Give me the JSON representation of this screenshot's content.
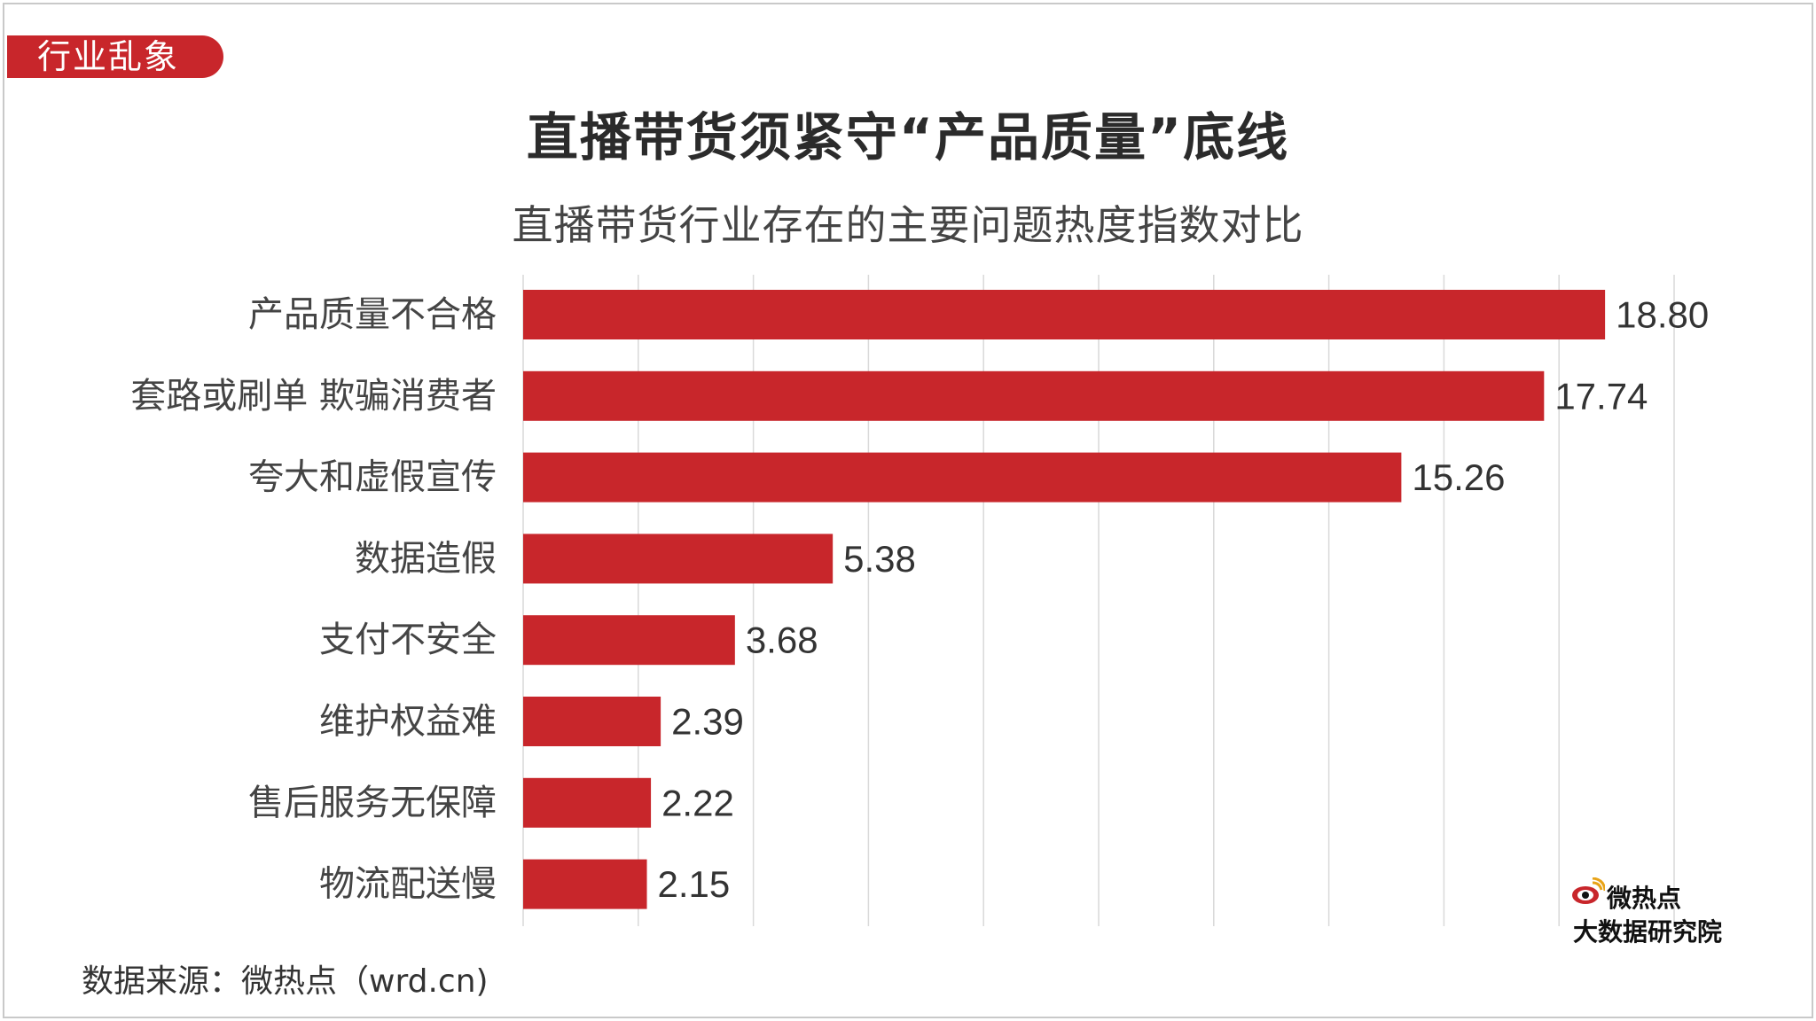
{
  "tag": "行业乱象",
  "title": "直播带货须紧守“产品质量”底线",
  "subtitle": "直播带货行业存在的主要问题热度指数对比",
  "source": "数据来源：微热点（wrd.cn)",
  "logo": {
    "line1": "微热点",
    "line2": "大数据研究院"
  },
  "colors": {
    "bar": "#c8262b",
    "tag": "#c8262b",
    "grid": "#d9d9d9"
  },
  "chart_data": {
    "type": "bar",
    "orientation": "horizontal",
    "categories": [
      "产品质量不合格",
      "套路或刷单 欺骗消费者",
      "夸大和虚假宣传",
      "数据造假",
      "支付不安全",
      "维护权益难",
      "售后服务无保障",
      "物流配送慢"
    ],
    "values": [
      18.8,
      17.74,
      15.26,
      5.38,
      3.68,
      2.39,
      2.22,
      2.15
    ],
    "value_labels": [
      "18.80",
      "17.74",
      "15.26",
      "5.38",
      "3.68",
      "2.39",
      "2.22",
      "2.15"
    ],
    "xlim": [
      0,
      20
    ],
    "gridlines": true,
    "legend": "none"
  }
}
